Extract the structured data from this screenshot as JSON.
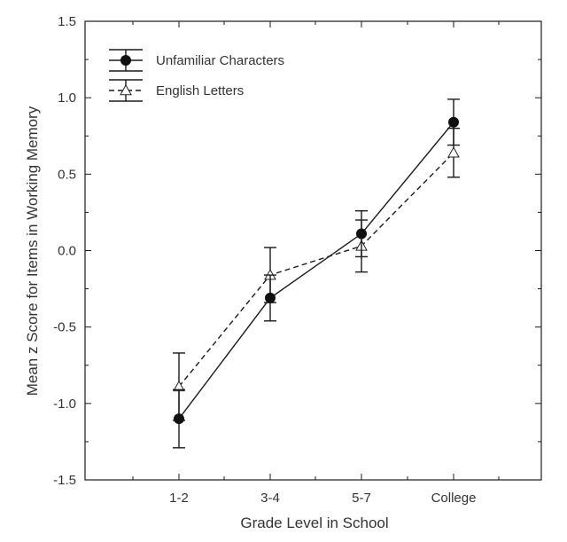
{
  "chart_data": {
    "type": "line",
    "categories": [
      "1-2",
      "3-4",
      "5-7",
      "College"
    ],
    "xlabel": "Grade Level in School",
    "ylabel": "Mean z Score for Items in Working Memory",
    "ylim": [
      -1.5,
      1.5
    ],
    "yticks": [
      "1.5",
      "1.0",
      "0.5",
      "0.0",
      "-0.5",
      "-1.0",
      "-1.5"
    ],
    "grid": false,
    "legend_position": "top-left",
    "series": [
      {
        "name": "Unfamiliar Characters",
        "marker": "filled-circle",
        "line": "solid",
        "values": [
          -1.1,
          -0.31,
          0.11,
          0.84
        ],
        "error": [
          0.19,
          0.15,
          0.15,
          0.15
        ]
      },
      {
        "name": "English Letters",
        "marker": "open-triangle",
        "line": "dashed",
        "values": [
          -0.89,
          -0.16,
          0.03,
          0.64
        ],
        "error": [
          0.22,
          0.18,
          0.17,
          0.16
        ]
      }
    ],
    "colors": {
      "line": "#1a1a1a",
      "text": "#333333"
    }
  }
}
